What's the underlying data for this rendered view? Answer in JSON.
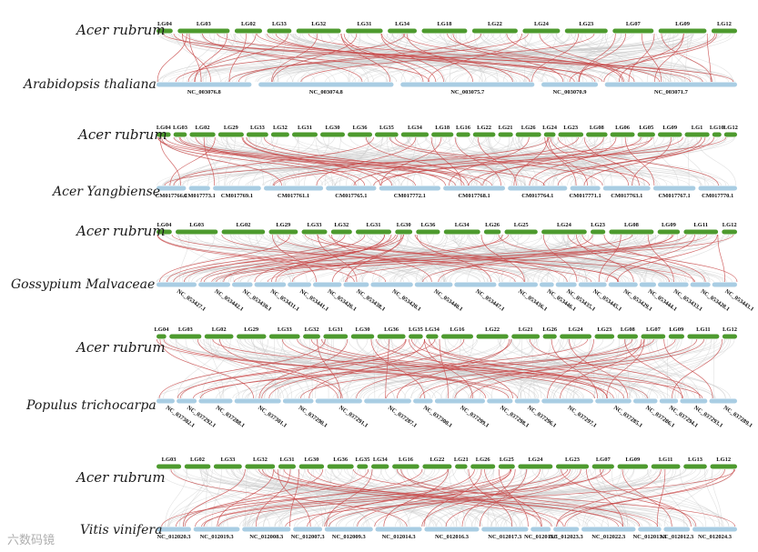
{
  "palette": {
    "top_chr": "#4d9a2e",
    "bottom_chr": "#a9cde3",
    "bg_link": "#c9c9c9",
    "syn_link": "#c94b4b"
  },
  "panels": [
    {
      "top_species": "Acer rubrum",
      "bottom_species": "Arabidopsis thaliana",
      "top_chrs": [
        "LG04",
        "LG03",
        "LG02",
        "LG33",
        "LG32",
        "LG31",
        "LG34",
        "LG18",
        "LG22",
        "LG24",
        "LG23",
        "LG07",
        "LG09",
        "LG12"
      ],
      "bottom_chrs": [
        "NC_003076.8",
        "NC_003074.8",
        "NC_003075.7",
        "NC_003070.9",
        "NC_003071.7"
      ]
    },
    {
      "top_species": "Acer rubrum",
      "bottom_species": "Acer Yangbiense",
      "top_chrs": [
        "LG04",
        "LG03",
        "LG02",
        "LG29",
        "LG33",
        "LG32",
        "LG31",
        "LG30",
        "LG36",
        "LG35",
        "LG34",
        "LG18",
        "LG16",
        "LG22",
        "LG21",
        "LG26",
        "LG24",
        "LG23",
        "LG08",
        "LG06",
        "LG05",
        "LG09",
        "LG1",
        "LG10",
        "LG12"
      ],
      "bottom_chrs": [
        "CM017766.1",
        "CM017773.1",
        "CM017769.1",
        "CM017761.1",
        "CM017765.1",
        "CM017772.1",
        "CM017768.1",
        "CM017764.1",
        "CM017771.1",
        "CM017763.1",
        "CM017767.1",
        "CM017770.1"
      ]
    },
    {
      "top_species": "Acer rubrum",
      "bottom_species": "Gossypium Malvaceae",
      "top_chrs": [
        "LG04",
        "LG03",
        "LG02",
        "LG29",
        "LG33",
        "LG32",
        "LG31",
        "LG30",
        "LG36",
        "LG34",
        "LG26",
        "LG25",
        "LG24",
        "LG23",
        "LG08",
        "LG09",
        "LG11",
        "LG12"
      ],
      "bottom_chrs": [
        "NC_053427.1",
        "NC_053442.1",
        "NC_053430.1",
        "NC_053431.1",
        "NC_053441.1",
        "NC_053426.1",
        "NC_053438.1",
        "NC_053420.1",
        "NC_053440.1",
        "NC_053447.1",
        "NC_053436.1",
        "NC_053446.1",
        "NC_053435.1",
        "NC_053445.1",
        "NC_053429.1",
        "NC_053444.1",
        "NC_053433.1",
        "NC_053428.1",
        "NC_053443.1"
      ]
    },
    {
      "top_species": "Acer rubrum",
      "bottom_species": "Populus trichocarpa",
      "top_chrs": [
        "LG04",
        "LG03",
        "LG02",
        "LG29",
        "LG33",
        "LG32",
        "LG31",
        "LG30",
        "LG36",
        "LG35",
        "LG34",
        "LG16",
        "LG22",
        "LG21",
        "LG26",
        "LG24",
        "LG23",
        "LG08",
        "LG07",
        "LG09",
        "LG11",
        "LG12"
      ],
      "bottom_chrs": [
        "NC_037302.1",
        "NC_037292.1",
        "NC_037288.1",
        "NC_037301.1",
        "NC_037290.1",
        "NC_037291.1",
        "NC_037287.1",
        "NC_037300.1",
        "NC_037299.1",
        "NC_037298.1",
        "NC_037296.1",
        "NC_037297.1",
        "NC_037285.1",
        "NC_037286.1",
        "NC_037294.1",
        "NC_037293.1",
        "NC_037289.1"
      ]
    },
    {
      "top_species": "Acer rubrum",
      "bottom_species": "Vitis vinifera",
      "top_chrs": [
        "LG03",
        "LG02",
        "LG33",
        "LG32",
        "LG31",
        "LG30",
        "LG36",
        "LG35",
        "LG34",
        "LG16",
        "LG22",
        "LG21",
        "LG26",
        "LG25",
        "LG24",
        "LG23",
        "LG07",
        "LG09",
        "LG11",
        "LG13",
        "LG12"
      ],
      "bottom_chrs": [
        "NC_012020.3",
        "NC_012019.3",
        "NC_012008.3",
        "NC_012007.3",
        "NC_012009.3",
        "NC_012014.3",
        "NC_012016.3",
        "NC_012017.3",
        "NC_012011.3",
        "NC_012023.3",
        "NC_012022.3",
        "NC_012013.3",
        "NC_012012.3",
        "NC_012024.3"
      ]
    }
  ],
  "watermark": "六数码镜"
}
